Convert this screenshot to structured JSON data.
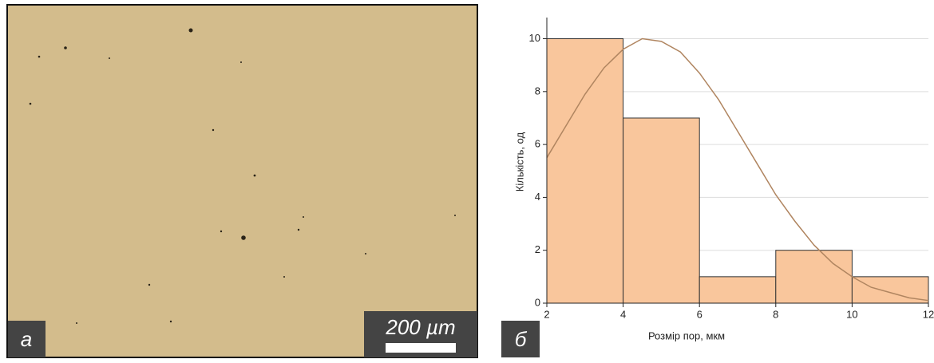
{
  "micrograph": {
    "label": "а",
    "scale_bar": "200 µm"
  },
  "chart_data": {
    "type": "histogram",
    "label": "б",
    "xlabel": "Розмір пор, мкм",
    "ylabel": "Кількість, од",
    "bins": [
      2,
      4,
      6,
      8,
      10,
      12
    ],
    "values": [
      10,
      7,
      1,
      2,
      1
    ],
    "color": "#f9c69c",
    "fit": {
      "color": "#b08560",
      "x": [
        2,
        2.5,
        3,
        3.5,
        4,
        4.5,
        5,
        5.5,
        6,
        6.5,
        7,
        7.5,
        8,
        8.5,
        9,
        9.5,
        10,
        10.5,
        11,
        11.5,
        12
      ],
      "values": [
        5.5,
        6.7,
        7.9,
        8.9,
        9.6,
        10.0,
        9.9,
        9.5,
        8.7,
        7.7,
        6.5,
        5.3,
        4.1,
        3.1,
        2.2,
        1.5,
        1.0,
        0.6,
        0.4,
        0.2,
        0.1
      ]
    },
    "xlim": [
      2,
      12
    ],
    "ylim": [
      0,
      10.8
    ],
    "xticks": [
      2,
      4,
      6,
      8,
      10,
      12
    ],
    "yticks": [
      0,
      2,
      4,
      6,
      8,
      10
    ],
    "grid": true
  }
}
